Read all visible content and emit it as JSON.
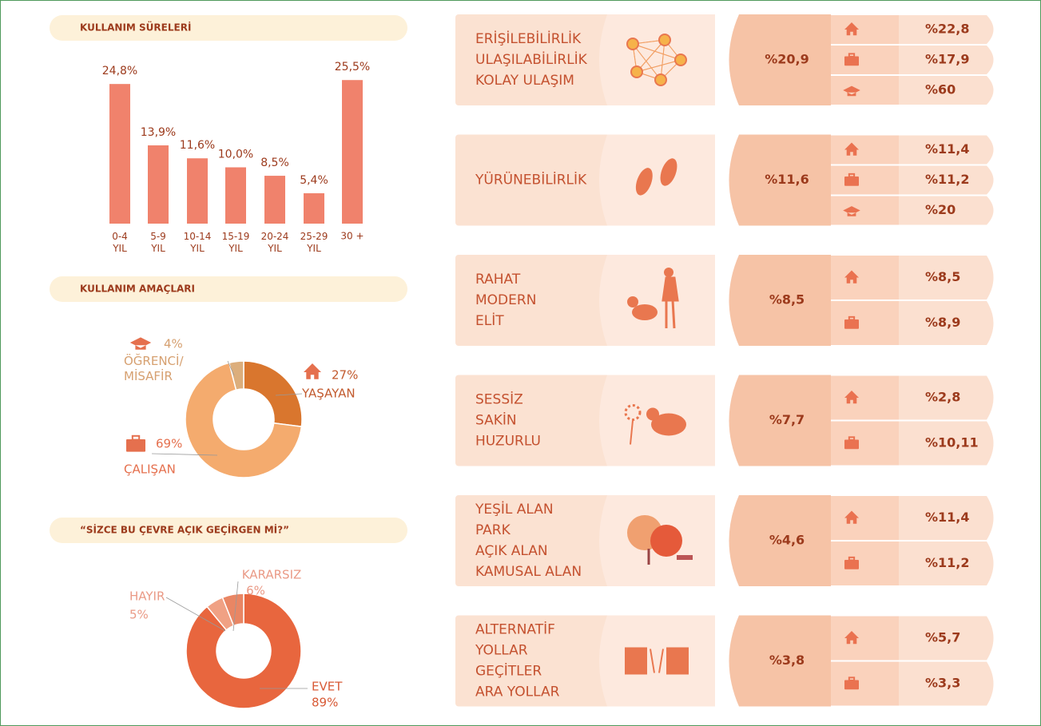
{
  "chart_data": [
    {
      "type": "bar",
      "title": "KULLANIM SÜRELERİ",
      "categories": [
        "0-4\nYIL",
        "5-9\nYIL",
        "10-14\nYIL",
        "15-19\nYIL",
        "20-24\nYIL",
        "25-29\nYIL",
        "30 +"
      ],
      "values": [
        24.8,
        13.9,
        11.6,
        10.0,
        8.5,
        5.4,
        25.5
      ],
      "value_labels": [
        "24,8%",
        "13,9%",
        "11,6%",
        "10,0%",
        "8,5%",
        "5,4%",
        "25,5%"
      ],
      "color": "#f0826c"
    },
    {
      "type": "donut",
      "title": "KULLANIM AMAÇLARI",
      "categories": [
        "YAŞAYAN",
        "ÇALIŞAN",
        "ÖĞRENCİ/\nMİSAFİR"
      ],
      "values": [
        27,
        69,
        4
      ],
      "value_labels": [
        "27%",
        "69%",
        "4%"
      ],
      "colors": [
        "#d9762e",
        "#f4ab6e",
        "#dcae7c"
      ]
    },
    {
      "type": "donut",
      "title": "“SİZCE BU ÇEVRE AÇIK GEÇİRGEN Mİ?”",
      "categories": [
        "EVET",
        "HAYIR",
        "KARARSIZ"
      ],
      "values": [
        89,
        5,
        6
      ],
      "value_labels": [
        "89%",
        "5%",
        "6%"
      ],
      "colors": [
        "#e8663e",
        "#f0a184",
        "#e98664"
      ]
    }
  ],
  "panels": [
    {
      "lines": [
        "ERİŞİLEBİLİRLİK",
        "ULAŞILABİLİRLİK",
        "KOLAY ULAŞIM"
      ],
      "total": "%20,9",
      "items": [
        "%22,8",
        "%17,9",
        "%60"
      ]
    },
    {
      "lines": [
        "YÜRÜNEBİLİRLİK"
      ],
      "total": "%11,6",
      "items": [
        "%11,4",
        "%11,2",
        "%20"
      ]
    },
    {
      "lines": [
        "RAHAT",
        "MODERN",
        "ELİT"
      ],
      "total": "%8,5",
      "items": [
        "%8,5",
        "%8,9"
      ]
    },
    {
      "lines": [
        "SESSİZ",
        "SAKİN",
        "HUZURLU"
      ],
      "total": "%7,7",
      "items": [
        "%2,8",
        "%10,11"
      ]
    },
    {
      "lines": [
        "YEŞİL ALAN",
        "PARK",
        "AÇIK ALAN",
        "KAMUSAL ALAN"
      ],
      "total": "%4,6",
      "items": [
        "%11,4",
        "%11,2"
      ]
    },
    {
      "lines": [
        "ALTERNATİF",
        " YOLLAR",
        "GEÇİTLER",
        "ARA YOLLAR"
      ],
      "total": "%3,8",
      "items": [
        "%5,7",
        "%3,3"
      ]
    }
  ]
}
